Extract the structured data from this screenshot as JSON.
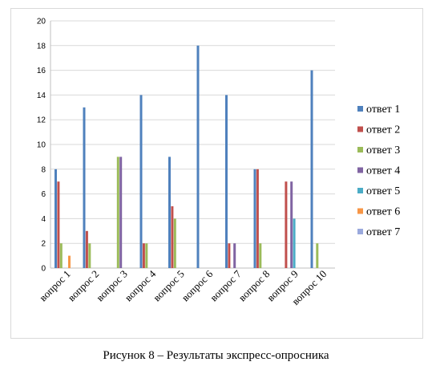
{
  "caption": "Рисунок 8 – Результаты экспресс-опросника",
  "chart_data": {
    "type": "bar",
    "title": "",
    "xlabel": "",
    "ylabel": "",
    "ylim": [
      0,
      20
    ],
    "yticks": [
      0,
      2,
      4,
      6,
      8,
      10,
      12,
      14,
      16,
      18,
      20
    ],
    "grid": "horizontal",
    "legend_position": "right",
    "categories": [
      "вопрос 1",
      "вопрос 2",
      "вопрос 3",
      "вопрос 4",
      "вопрос 5",
      "вопрос 6",
      "вопрос 7",
      "вопрос 8",
      "вопрос 9",
      "вопрос 10"
    ],
    "series": [
      {
        "name": "ответ 1",
        "color": "#4f81bd",
        "values": [
          8,
          13,
          0,
          14,
          9,
          18,
          14,
          8,
          0,
          16
        ]
      },
      {
        "name": "ответ 2",
        "color": "#c0504d",
        "values": [
          7,
          3,
          0,
          2,
          5,
          0,
          2,
          8,
          7,
          0
        ]
      },
      {
        "name": "ответ 3",
        "color": "#9bbb59",
        "values": [
          2,
          2,
          9,
          2,
          4,
          0,
          0,
          2,
          0,
          2
        ]
      },
      {
        "name": "ответ 4",
        "color": "#8064a2",
        "values": [
          0,
          0,
          9,
          0,
          0,
          0,
          2,
          0,
          7,
          0
        ]
      },
      {
        "name": "ответ 5",
        "color": "#4bacc6",
        "values": [
          0,
          0,
          0,
          0,
          0,
          0,
          0,
          0,
          4,
          0
        ]
      },
      {
        "name": "ответ 6",
        "color": "#f79646",
        "values": [
          1,
          0,
          0,
          0,
          0,
          0,
          0,
          0,
          0,
          0
        ]
      },
      {
        "name": "ответ 7",
        "color": "#9aa9dd",
        "values": [
          0,
          0,
          0,
          0,
          0,
          0,
          0,
          0,
          0,
          0
        ]
      }
    ]
  }
}
